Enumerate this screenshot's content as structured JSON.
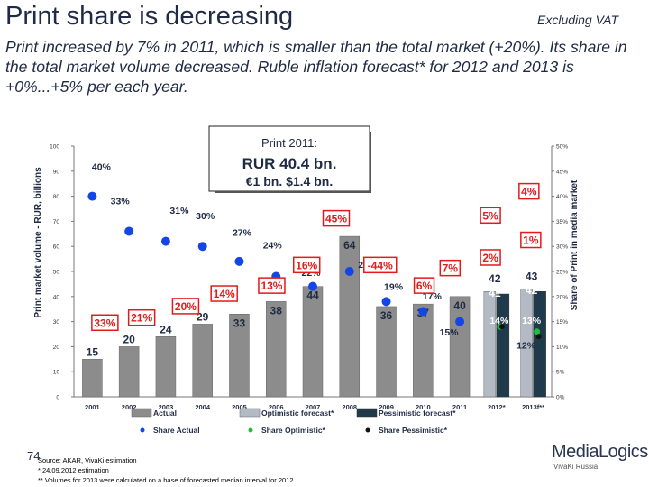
{
  "header": {
    "title": "Print share is decreasing",
    "excluding": "Excluding VAT",
    "subtitle": "Print increased by 7% in 2011, which is smaller than the total market (+20%). Its share in the total market volume decreased. Ruble inflation forecast* for 2012 and 2013 is +0%...+5% per each year."
  },
  "callout": {
    "line1": "Print 2011:",
    "line2": "RUR 40.4 bn.",
    "line3": "€1 bn. $1.4 bn."
  },
  "footer": {
    "page_number": "74",
    "source": "Source: AKAR, VivaKi estimation",
    "note1": "* 24.09.2012 estimation",
    "note2": "** Volumes for 2013 were calculated on a base of forecasted median interval for 2012",
    "logo_main": "MediaLogics",
    "logo_sub": "VivaKi Russia"
  },
  "chart_data": {
    "type": "bar",
    "categories": [
      "2001",
      "2002",
      "2003",
      "2004",
      "2005",
      "2006",
      "2007",
      "2008",
      "2009",
      "2010",
      "2011",
      "2012*",
      "2013f**"
    ],
    "ylabel": "Print market volume - RUR, billions",
    "y2label": "Share of Print in media market",
    "ylim": [
      0,
      100
    ],
    "y2lim": [
      0,
      0.5
    ],
    "yticks": [
      "0",
      "10",
      "20",
      "30",
      "40",
      "50",
      "60",
      "70",
      "80",
      "90",
      "100"
    ],
    "y2ticks": [
      "0%",
      "5%",
      "10%",
      "15%",
      "20%",
      "25%",
      "30%",
      "35%",
      "40%",
      "45%",
      "50%"
    ],
    "series": [
      {
        "name": "Actual",
        "values": [
          15,
          20,
          24,
          29,
          33,
          38,
          44,
          64,
          36,
          37,
          40,
          null,
          null
        ],
        "labels": [
          "15",
          "20",
          "24",
          "29",
          "33",
          "38",
          "44",
          "64",
          "36",
          "37",
          "40",
          "",
          ""
        ]
      },
      {
        "name": "Optimistic forecast*",
        "values": [
          null,
          null,
          null,
          null,
          null,
          null,
          null,
          null,
          null,
          null,
          null,
          42,
          43
        ],
        "labels": [
          "",
          "",
          "",
          "",
          "",
          "",
          "",
          "",
          "",
          "",
          "",
          "42",
          "43"
        ]
      },
      {
        "name": "Pessimistic forecast*",
        "values": [
          null,
          null,
          null,
          null,
          null,
          null,
          null,
          null,
          null,
          null,
          null,
          41,
          42
        ],
        "labels": [
          "",
          "",
          "",
          "",
          "",
          "",
          "",
          "",
          "",
          "",
          "",
          "41",
          "42"
        ]
      },
      {
        "name": "Share Actual",
        "values": [
          0.4,
          0.33,
          0.31,
          0.3,
          0.27,
          0.24,
          0.22,
          0.25,
          0.19,
          0.17,
          0.15,
          null,
          null
        ]
      },
      {
        "name": "Share Optimistic*",
        "values": [
          null,
          null,
          null,
          null,
          null,
          null,
          null,
          null,
          null,
          null,
          null,
          0.14,
          0.13
        ]
      },
      {
        "name": "Share Pessimistic*",
        "values": [
          null,
          null,
          null,
          null,
          null,
          null,
          null,
          null,
          null,
          null,
          null,
          0.14,
          0.12
        ]
      }
    ],
    "share_labels": [
      {
        "text": "40%",
        "cat": 0,
        "y2": 0.452,
        "dx": 10,
        "boxed": false
      },
      {
        "text": "33%",
        "cat": 1,
        "y2": 0.384,
        "dx": -10,
        "boxed": false
      },
      {
        "text": "31%",
        "cat": 2,
        "y2": 0.365,
        "dx": 15,
        "boxed": false
      },
      {
        "text": "30%",
        "cat": 3,
        "y2": 0.354,
        "dx": 3,
        "boxed": false
      },
      {
        "text": "27%",
        "cat": 4,
        "y2": 0.321,
        "dx": 3,
        "boxed": false
      },
      {
        "text": "24%",
        "cat": 5,
        "y2": 0.296,
        "dx": -4,
        "boxed": false
      },
      {
        "text": "22%",
        "cat": 6,
        "y2": 0.241,
        "dx": -2,
        "boxed": false
      },
      {
        "text": "25%",
        "cat": 7,
        "y2": 0.257,
        "dx": 20,
        "boxed": false
      },
      {
        "text": "19%",
        "cat": 8,
        "y2": 0.213,
        "dx": 8,
        "boxed": false
      },
      {
        "text": "17%",
        "cat": 9,
        "y2": 0.194,
        "dx": 10,
        "boxed": false
      },
      {
        "text": "15%",
        "cat": 10,
        "y2": 0.122,
        "dx": -12,
        "boxed": false
      },
      {
        "text": "14%",
        "cat": 11,
        "y2": 0.146,
        "dx": 3,
        "boxed": false
      },
      {
        "text": "13%",
        "cat": 12,
        "y2": 0.146,
        "dx": -2,
        "boxed": false
      },
      {
        "text": "12%",
        "cat": 12,
        "y2": 0.096,
        "dx": -8,
        "boxed": false
      }
    ],
    "growth_labels": [
      {
        "text": "33%",
        "cat": 0,
        "y2": 0.147,
        "dx": 14
      },
      {
        "text": "21%",
        "cat": 1,
        "y2": 0.157,
        "dx": 14
      },
      {
        "text": "20%",
        "cat": 2,
        "y2": 0.18,
        "dx": 22
      },
      {
        "text": "14%",
        "cat": 3,
        "y2": 0.205,
        "dx": 24
      },
      {
        "text": "13%",
        "cat": 4,
        "y2": 0.221,
        "dx": 36
      },
      {
        "text": "16%",
        "cat": 5,
        "y2": 0.262,
        "dx": 34
      },
      {
        "text": "45%",
        "cat": 6,
        "y2": 0.355,
        "dx": 26
      },
      {
        "text": "-44%",
        "cat": 7,
        "y2": 0.262,
        "dx": 34
      },
      {
        "text": "6%",
        "cat": 8,
        "y2": 0.221,
        "dx": 42
      },
      {
        "text": "7%",
        "cat": 9,
        "y2": 0.256,
        "dx": 30
      },
      {
        "text": "2%",
        "cat": 10,
        "y2": 0.277,
        "dx": 34
      },
      {
        "text": "5%",
        "cat": 10,
        "y2": 0.361,
        "dx": 34
      },
      {
        "text": "4%",
        "cat": 11,
        "y2": 0.409,
        "dx": 36
      },
      {
        "text": "1%",
        "cat": 11,
        "y2": 0.312,
        "dx": 38
      }
    ],
    "legend": {
      "row1": [
        "Actual",
        "Optimistic forecast*",
        "Pessimistic forecast*"
      ],
      "row2": [
        "Share Actual",
        "Share Optimistic*",
        "Share Pessimistic*"
      ]
    },
    "colors": {
      "actual_bar": "#8c8c8c",
      "optimistic_bar": "#b4bac4",
      "pessimistic_bar": "#1f3a4a",
      "share_actual": "#1446e6",
      "share_optimistic": "#1fbf3a",
      "share_pessimistic": "#111111",
      "growth_box": "#e21a1a",
      "text": "#1f2a44"
    }
  }
}
